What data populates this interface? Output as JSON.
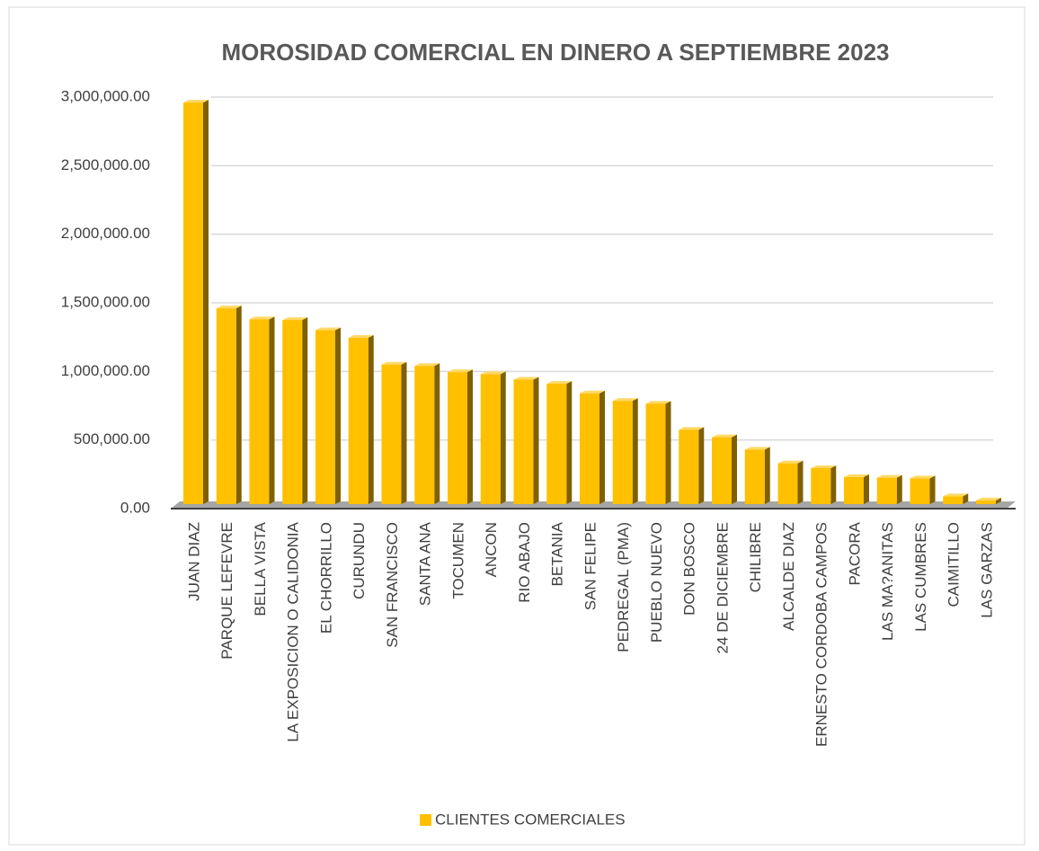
{
  "chart_data": {
    "type": "bar",
    "title": "MOROSIDAD COMERCIAL EN DINERO A SEPTIEMBRE 2023",
    "categories": [
      "JUAN DIAZ",
      "PARQUE LEFEVRE",
      "BELLA VISTA",
      "LA EXPOSICION O CALIDONIA",
      "EL CHORRILLO",
      "CURUNDU",
      "SAN FRANCISCO",
      "SANTA ANA",
      "TOCUMEN",
      "ANCON",
      "RIO ABAJO",
      "BETANIA",
      "SAN FELIPE",
      "PEDREGAL (PMA)",
      "PUEBLO NUEVO",
      "DON BOSCO",
      "24 DE DICIEMBRE",
      "CHILIBRE",
      "ALCALDE DIAZ",
      "ERNESTO CORDOBA CAMPOS",
      "PACORA",
      "LAS MA?ANITAS",
      "LAS CUMBRES",
      "CAIMITILLO",
      "LAS GARZAS"
    ],
    "series": [
      {
        "name": "CLIENTES COMERCIALES",
        "color": "#ffc000",
        "values": [
          2960000,
          1460000,
          1380000,
          1375000,
          1300000,
          1245000,
          1050000,
          1040000,
          995000,
          980000,
          940000,
          910000,
          840000,
          785000,
          765000,
          575000,
          520000,
          430000,
          330000,
          295000,
          230000,
          225000,
          220000,
          90000,
          60000
        ]
      }
    ],
    "ylim": [
      0,
      3000000
    ],
    "yticks": [
      {
        "value": 0,
        "label": "0.00"
      },
      {
        "value": 500000,
        "label": "500,000.00"
      },
      {
        "value": 1000000,
        "label": "1,000,000.00"
      },
      {
        "value": 1500000,
        "label": "1,500,000.00"
      },
      {
        "value": 2000000,
        "label": "2,000,000.00"
      },
      {
        "value": 2500000,
        "label": "2,500,000.00"
      },
      {
        "value": 3000000,
        "label": "3,000,000.00"
      }
    ],
    "grid": true,
    "legend": "bottom"
  }
}
